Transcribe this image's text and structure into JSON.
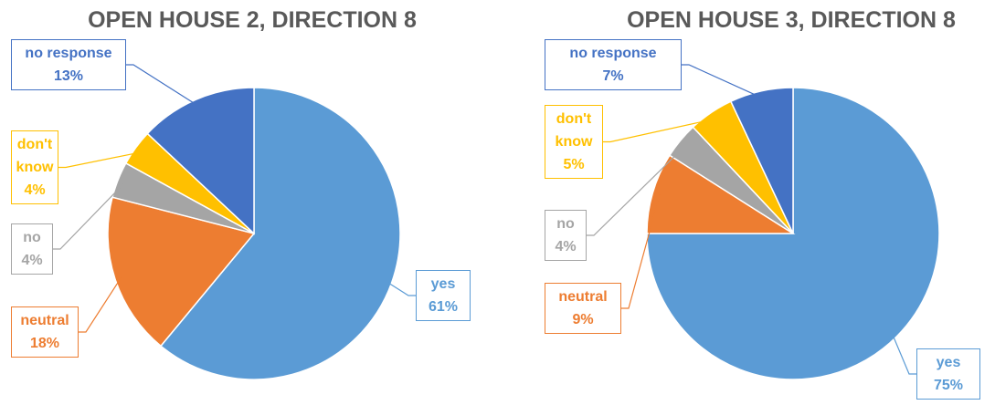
{
  "chart_data": [
    {
      "type": "pie",
      "title": "OPEN HOUSE 2, DIRECTION 8",
      "categories": [
        "yes",
        "neutral",
        "no",
        "don't know",
        "no response"
      ],
      "values": [
        61,
        18,
        4,
        4,
        13
      ],
      "value_labels": [
        "61%",
        "18%",
        "4%",
        "4%",
        "13%"
      ],
      "colors": [
        "#5b9bd5",
        "#ed7d31",
        "#a5a5a5",
        "#ffc000",
        "#4472c4"
      ]
    },
    {
      "type": "pie",
      "title": "OPEN HOUSE 3, DIRECTION 8",
      "categories": [
        "yes",
        "neutral",
        "no",
        "don't know",
        "no response"
      ],
      "values": [
        75,
        9,
        4,
        5,
        7
      ],
      "value_labels": [
        "75%",
        "9%",
        "4%",
        "5%",
        "7%"
      ],
      "colors": [
        "#5b9bd5",
        "#ed7d31",
        "#a5a5a5",
        "#ffc000",
        "#4472c4"
      ]
    }
  ]
}
